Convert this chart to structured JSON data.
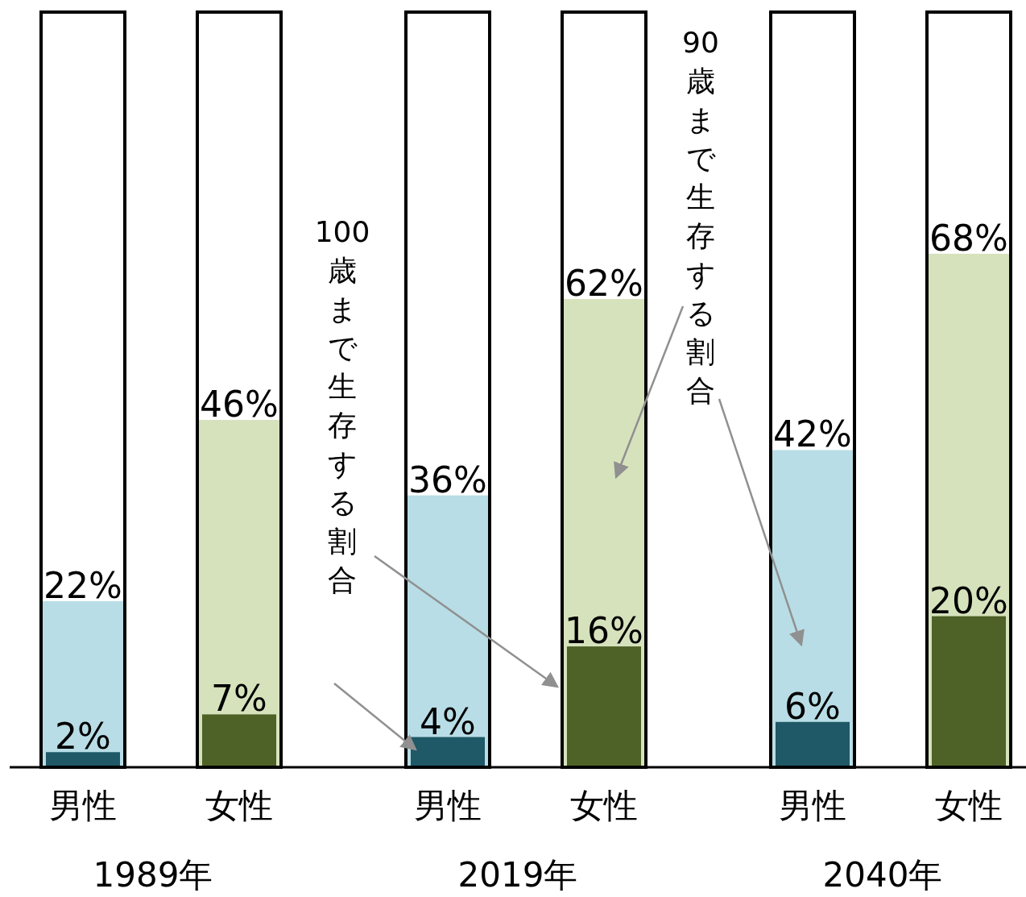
{
  "chart_data": {
    "type": "bar",
    "ylim": [
      0,
      100
    ],
    "categories": [
      "男性",
      "女性",
      "男性",
      "女性",
      "男性",
      "女性"
    ],
    "series": [
      {
        "name": "90歳まで生存する割合",
        "colors": [
          "#b8dde6",
          "#d6e2bc",
          "#b8dde6",
          "#d6e2bc",
          "#b8dde6",
          "#d6e2bc"
        ],
        "values": [
          22,
          46,
          36,
          62,
          42,
          68
        ],
        "value_labels": [
          "22%",
          "46%",
          "36%",
          "62%",
          "42%",
          "68%"
        ]
      },
      {
        "name": "100歳まで生存する割合",
        "colors": [
          "#1f5866",
          "#4e6127",
          "#1f5866",
          "#4e6127",
          "#1f5866",
          "#4e6127"
        ],
        "values": [
          2,
          7,
          4,
          16,
          6,
          20
        ],
        "value_labels": [
          "2%",
          "7%",
          "4%",
          "16%",
          "6%",
          "20%"
        ]
      }
    ],
    "annotations": [
      "1989年",
      "2019年",
      "2040年"
    ]
  }
}
